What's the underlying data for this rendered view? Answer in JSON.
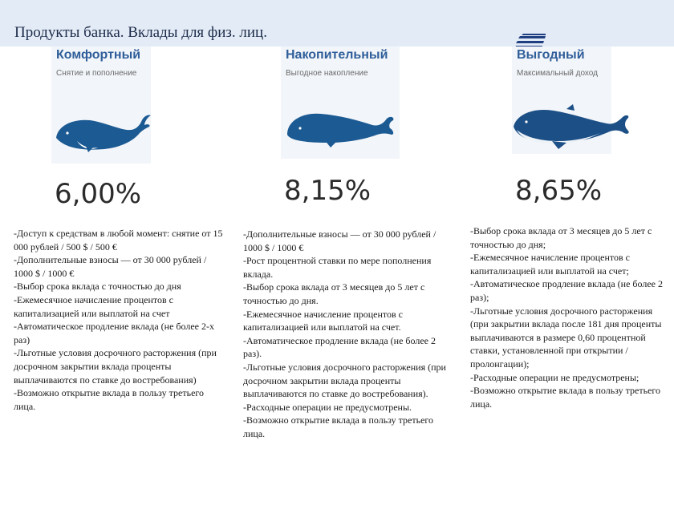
{
  "page": {
    "title": "Продукты банка. Вклады для физ. лиц."
  },
  "logo": {
    "icon": "bank-logo-icon",
    "color": "#1f3f82"
  },
  "colors": {
    "accent": "#2f5e9a",
    "whale": "#1c5a93",
    "header_bg": "#e3ecf6"
  },
  "products": [
    {
      "name": "Комфортный",
      "subtitle": "Снятие и пополнение",
      "icon": "whale-icon",
      "rate": "6,00%",
      "features": [
        "-Доступ к средствам в любой момент: снятие от 15 000 рублей / 500 $ / 500 €",
        "-Дополнительные взносы — от 30 000 рублей / 1000 $ / 1000 €",
        "-Выбор срока вклада с точностью до дня",
        "-Ежемесячное начисление процентов с капитализацией или выплатой на счет",
        "-Автоматическое продление вклада (не более 2-х раз)",
        "-Льготные условия досрочного расторжения (при досрочном закрытии вклада проценты выплачиваются по ставке до востребования)",
        "-Возможно открытие вклада в пользу третьего лица."
      ]
    },
    {
      "name": "Накопительный",
      "subtitle": "Выгодное накопление",
      "icon": "whale-icon",
      "rate": "8,15%",
      "features": [
        "-Дополнительные взносы — от 30 000 рублей / 1000 $ / 1000 €",
        "-Рост процентной ставки по мере пополнения вклада.",
        "-Выбор срока вклада от 3 месяцев до 5 лет с точностью до дня.",
        "-Ежемесячное начисление процентов с капитализацией или выплатой на счет.",
        "-Автоматическое продление вклада (не более 2 раз).",
        "-Льготные условия досрочного расторжения (при досрочном закрытии вклада проценты выплачиваются по ставке до востребования).",
        "-Расходные операции не предусмотрены.",
        "-Возможно открытие вклада в пользу третьего лица."
      ]
    },
    {
      "name": "Выгодный",
      "subtitle": "Максимальный доход",
      "icon": "whale-icon",
      "rate": "8,65%",
      "features": [
        "-Выбор срока вклада от 3 месяцев до 5 лет с точностью до дня;",
        "-Ежемесячное начисление процентов с капитализацией или выплатой на счет;",
        "-Автоматическое продление вклада (не более 2 раз);",
        "-Льготные условия досрочного расторжения (при закрытии вклада после 181 дня проценты выплачиваются в размере 0,60 процентной ставки, установленной при открытии / пролонгации);",
        "-Расходные операции не предусмотрены;",
        "-Возможно открытие вклада в пользу третьего лица."
      ]
    }
  ]
}
